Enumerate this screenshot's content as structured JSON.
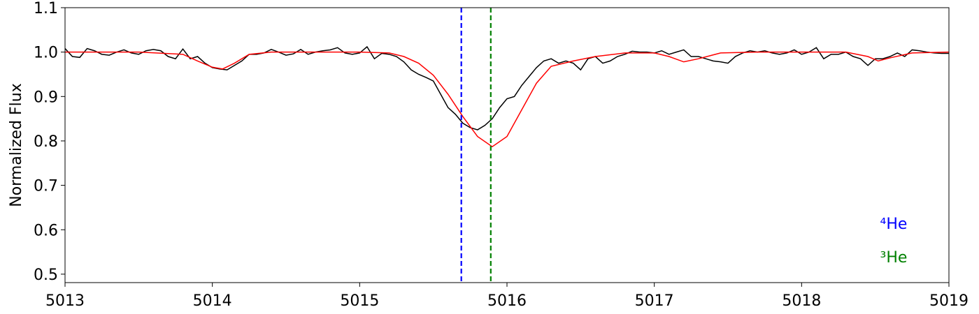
{
  "chart_data": {
    "type": "line",
    "y_label": "Normalized Flux",
    "xlim": [
      5013,
      5019
    ],
    "xticks": [
      5013,
      5014,
      5015,
      5016,
      5017,
      5018,
      5019
    ],
    "ylim": [
      0.481,
      1.1
    ],
    "yticks": [
      0.5,
      0.6,
      0.7,
      0.8,
      0.9,
      {
        "value": 1,
        "label": "1.0"
      },
      1.1
    ],
    "series": [
      {
        "color": "#000000",
        "x": [
          5013,
          5013.05,
          5013.1,
          5013.15,
          5013.2,
          5013.25,
          5013.3,
          5013.35,
          5013.4,
          5013.45,
          5013.5,
          5013.55,
          5013.6,
          5013.65,
          5013.7,
          5013.75,
          5013.8,
          5013.85,
          5013.9,
          5013.95,
          5014,
          5014.05,
          5014.1,
          5014.15,
          5014.2,
          5014.25,
          5014.3,
          5014.35,
          5014.4,
          5014.45,
          5014.5,
          5014.55,
          5014.6,
          5014.65,
          5014.7,
          5014.75,
          5014.8,
          5014.85,
          5014.9,
          5014.95,
          5015,
          5015.05,
          5015.1,
          5015.15,
          5015.2,
          5015.25,
          5015.3,
          5015.35,
          5015.4,
          5015.45,
          5015.5,
          5015.55,
          5015.6,
          5015.65,
          5015.7,
          5015.75,
          5015.8,
          5015.85,
          5015.9,
          5015.95,
          5016,
          5016.05,
          5016.1,
          5016.15,
          5016.2,
          5016.25,
          5016.3,
          5016.35,
          5016.4,
          5016.45,
          5016.5,
          5016.55,
          5016.6,
          5016.65,
          5016.7,
          5016.75,
          5016.8,
          5016.85,
          5016.9,
          5016.95,
          5017,
          5017.05,
          5017.1,
          5017.15,
          5017.2,
          5017.25,
          5017.3,
          5017.35,
          5017.4,
          5017.45,
          5017.5,
          5017.55,
          5017.6,
          5017.65,
          5017.7,
          5017.75,
          5017.8,
          5017.85,
          5017.9,
          5017.95,
          5018,
          5018.05,
          5018.1,
          5018.15,
          5018.2,
          5018.25,
          5018.3,
          5018.35,
          5018.4,
          5018.45,
          5018.5,
          5018.55,
          5018.6,
          5018.65,
          5018.7,
          5018.75,
          5018.8,
          5018.85,
          5018.9,
          5018.95,
          5019
        ],
        "values": [
          1.008,
          0.99,
          0.988,
          1.008,
          1.003,
          0.995,
          0.993,
          1.0,
          1.005,
          0.998,
          0.995,
          1.003,
          1.006,
          1.003,
          0.99,
          0.985,
          1.007,
          0.985,
          0.99,
          0.975,
          0.965,
          0.962,
          0.96,
          0.97,
          0.98,
          0.995,
          0.995,
          0.998,
          1.006,
          1.0,
          0.993,
          0.996,
          1.006,
          0.995,
          1.0,
          1.003,
          1.005,
          1.01,
          0.998,
          0.995,
          0.998,
          1.012,
          0.985,
          0.997,
          0.995,
          0.99,
          0.978,
          0.96,
          0.95,
          0.943,
          0.935,
          0.905,
          0.875,
          0.86,
          0.84,
          0.83,
          0.825,
          0.835,
          0.85,
          0.875,
          0.895,
          0.9,
          0.925,
          0.945,
          0.965,
          0.98,
          0.985,
          0.975,
          0.98,
          0.975,
          0.96,
          0.985,
          0.99,
          0.975,
          0.98,
          0.99,
          0.995,
          1.002,
          1.0,
          1.0,
          0.998,
          1.003,
          0.995,
          1.0,
          1.005,
          0.99,
          0.99,
          0.985,
          0.98,
          0.978,
          0.975,
          0.99,
          0.998,
          1.003,
          1.0,
          1.003,
          0.998,
          0.995,
          0.998,
          1.005,
          0.995,
          1.0,
          1.01,
          0.985,
          0.995,
          0.995,
          1.0,
          0.99,
          0.985,
          0.97,
          0.985,
          0.985,
          0.99,
          0.998,
          0.99,
          1.005,
          1.003,
          1.0,
          0.998,
          0.997,
          0.997
        ]
      },
      {
        "color": "#ff0000",
        "x": [
          5013,
          5013.5,
          5013.8,
          5013.9,
          5014,
          5014.07,
          5014.15,
          5014.25,
          5014.4,
          5014.6,
          5015,
          5015.2,
          5015.3,
          5015.4,
          5015.5,
          5015.6,
          5015.7,
          5015.8,
          5015.9,
          5016,
          5016.1,
          5016.2,
          5016.3,
          5016.45,
          5016.6,
          5016.8,
          5017,
          5017.1,
          5017.2,
          5017.3,
          5017.45,
          5017.7,
          5018.3,
          5018.45,
          5018.52,
          5018.6,
          5018.75,
          5019
        ],
        "values": [
          1,
          1,
          0.995,
          0.98,
          0.966,
          0.962,
          0.975,
          0.995,
          1,
          1,
          1,
          0.998,
          0.99,
          0.975,
          0.948,
          0.905,
          0.855,
          0.81,
          0.787,
          0.81,
          0.87,
          0.93,
          0.968,
          0.98,
          0.99,
          0.998,
          0.998,
          0.99,
          0.978,
          0.985,
          0.998,
          1,
          1,
          0.99,
          0.98,
          0.987,
          0.998,
          1
        ]
      }
    ],
    "vlines": [
      {
        "x": 5015.69,
        "color": "#0000ff"
      },
      {
        "x": 5015.89,
        "color": "#008000"
      }
    ],
    "annotations": [
      {
        "text": "⁴He",
        "color": "#0000ff"
      },
      {
        "text": "³He",
        "color": "#008000"
      }
    ]
  }
}
